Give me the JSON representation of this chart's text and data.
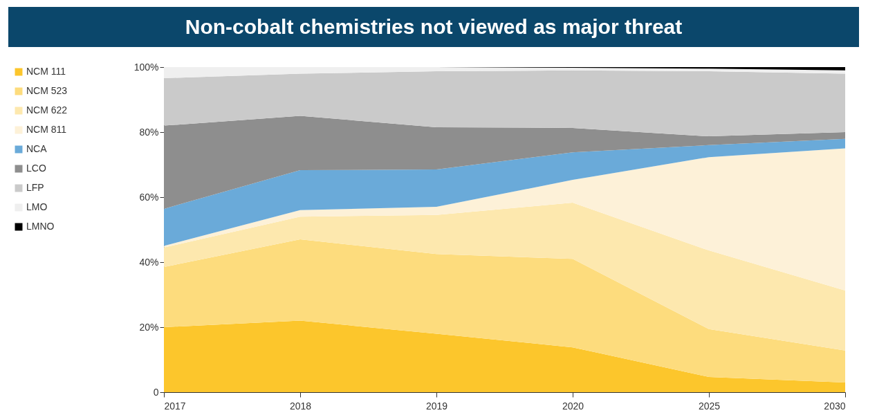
{
  "chart_data": {
    "type": "area",
    "title": "Non-cobalt chemistries not viewed as major threat",
    "categories": [
      "2017",
      "2018",
      "2019",
      "2020",
      "2025",
      "2030"
    ],
    "stacked": true,
    "legend": "left",
    "grid": false,
    "ylim": [
      0,
      100
    ],
    "yticks": [
      0,
      {
        "value": 20,
        "label": "20%"
      },
      {
        "value": 40,
        "label": "40%"
      },
      {
        "value": 60,
        "label": "60%"
      },
      {
        "value": 80,
        "label": "80%"
      },
      {
        "value": 100,
        "label": "100%"
      }
    ],
    "series": [
      {
        "name": "NCM 111",
        "color": "#fcc62c",
        "values": [
          20,
          22,
          18,
          13.8,
          4.7,
          3
        ]
      },
      {
        "name": "NCM 523",
        "color": "#fddc7d",
        "values": [
          18.5,
          25,
          24.5,
          27.2,
          14.7,
          9.8
        ]
      },
      {
        "name": "NCM 622",
        "color": "#fde8ae",
        "values": [
          6,
          7,
          12,
          17.3,
          24.2,
          18.5
        ]
      },
      {
        "name": "NCM 811",
        "color": "#fdf1d8",
        "values": [
          0.5,
          2,
          2.5,
          7,
          28.7,
          43.7
        ]
      },
      {
        "name": "NCA",
        "color": "#6aaad9",
        "values": [
          11.4,
          12.3,
          11.5,
          8.5,
          3.7,
          2.9
        ]
      },
      {
        "name": "LCO",
        "color": "#8e8e8e",
        "values": [
          25.6,
          16.7,
          13,
          7.5,
          2.7,
          2.1
        ]
      },
      {
        "name": "LFP",
        "color": "#cacaca",
        "values": [
          14.6,
          13,
          17.2,
          17.7,
          20,
          18
        ]
      },
      {
        "name": "LMO",
        "color": "#efefef",
        "values": [
          3.4,
          2,
          1.3,
          0.8,
          0.8,
          1
        ]
      },
      {
        "name": "LMNO",
        "color": "#000000",
        "values": [
          0,
          0,
          0,
          0.2,
          0.5,
          1
        ]
      }
    ]
  }
}
